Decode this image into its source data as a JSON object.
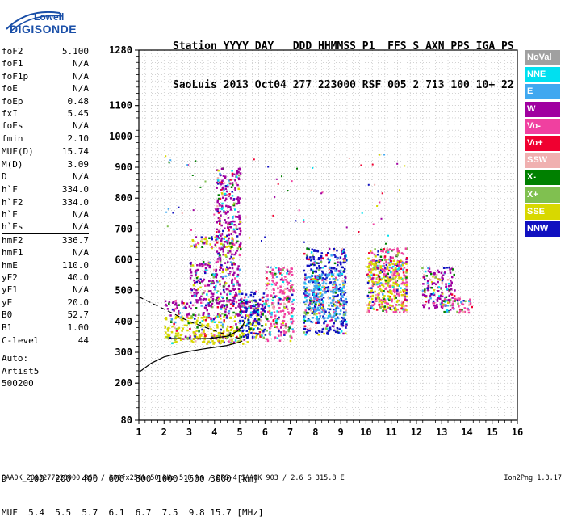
{
  "logo": {
    "top": "Lowell",
    "main": "DIGISONDE"
  },
  "header": {
    "line1": "Station YYYY DAY   DDD HHMMSS P1  FFS S AXN PPS IGA PS",
    "line2": "SaoLuis 2013 Oct04 277 223000 RSF 005 2 713 100 10+ 22"
  },
  "params": [
    {
      "label": "foF2",
      "value": "5.100"
    },
    {
      "label": "foF1",
      "value": "N/A"
    },
    {
      "label": "foF1p",
      "value": "N/A"
    },
    {
      "label": "foE",
      "value": "N/A"
    },
    {
      "label": "foEp",
      "value": "0.48"
    },
    {
      "label": "fxI",
      "value": "5.45"
    },
    {
      "label": "foEs",
      "value": "N/A"
    },
    {
      "label": "fmin",
      "value": "2.10",
      "sep": true
    },
    {
      "label": "MUF(D)",
      "value": "15.74"
    },
    {
      "label": "M(D)",
      "value": "3.09"
    },
    {
      "label": "D",
      "value": "N/A",
      "sep": true
    },
    {
      "label": "h`F",
      "value": "334.0"
    },
    {
      "label": "h`F2",
      "value": "334.0"
    },
    {
      "label": "h`E",
      "value": "N/A"
    },
    {
      "label": "h`Es",
      "value": "N/A",
      "sep": true
    },
    {
      "label": "hmF2",
      "value": "336.7"
    },
    {
      "label": "hmF1",
      "value": "N/A"
    },
    {
      "label": "hmE",
      "value": "110.0"
    },
    {
      "label": "yF2",
      "value": "40.0"
    },
    {
      "label": "yF1",
      "value": "N/A"
    },
    {
      "label": "yE",
      "value": "20.0"
    },
    {
      "label": "B0",
      "value": "52.7"
    },
    {
      "label": "B1",
      "value": "1.00",
      "sep": true
    },
    {
      "label": "C-level",
      "value": "44",
      "sep": true
    }
  ],
  "auto_lines": [
    "Auto:",
    "Artist5",
    "500200"
  ],
  "legend": [
    {
      "label": "NoVal",
      "color": "#a0a0a0"
    },
    {
      "label": "NNE",
      "color": "#00e0f0"
    },
    {
      "label": "E",
      "color": "#40a8f0"
    },
    {
      "label": "W",
      "color": "#a000a0"
    },
    {
      "label": "Vo-",
      "color": "#f040a0"
    },
    {
      "label": "Vo+",
      "color": "#f00030"
    },
    {
      "label": "SSW",
      "color": "#f0b0b0"
    },
    {
      "label": "X-",
      "color": "#008000"
    },
    {
      "label": "X+",
      "color": "#80c050"
    },
    {
      "label": "SSE",
      "color": "#d8d800"
    },
    {
      "label": "NNW",
      "color": "#1010c0"
    }
  ],
  "dmuf": {
    "line1": "D    100  200  400  600  800 1000 1500 3000 [km]",
    "line2": "MUF  5.4  5.5  5.7  6.1  6.7  7.5  9.8 15.7 [MHz]"
  },
  "footer": "SAA0K_2013277223000.RSF / 300fx256h 50 kHz 5.0 km / DPS-4 SAA0K 903 / 2.6 S 315.8 E",
  "version": "Ion2Png 1.3.17",
  "chart_data": {
    "type": "scatter",
    "title": "",
    "xlabel": "",
    "ylabel": "",
    "xlim": [
      1,
      16
    ],
    "ylim": [
      80,
      1280
    ],
    "x_ticks": [
      "1",
      "2",
      "3",
      "4",
      "5",
      "6",
      "7",
      "8",
      "9",
      "10",
      "11",
      "12",
      "13",
      "14",
      "15",
      "16"
    ],
    "y_ticks": [
      "80",
      "200",
      "300",
      "400",
      "500",
      "600",
      "700",
      "800",
      "900",
      "1000",
      "1100",
      "1280"
    ],
    "y_tick_values": [
      80,
      200,
      300,
      400,
      500,
      600,
      700,
      800,
      900,
      1000,
      1100,
      1280
    ],
    "grid": true,
    "echo_clusters": [
      {
        "x": [
          2.0,
          5.3
        ],
        "y": [
          330,
          360
        ],
        "color": "#d8d800"
      },
      {
        "x": [
          2.0,
          5.9
        ],
        "y": [
          350,
          420
        ],
        "color": "#d8d800"
      },
      {
        "x": [
          2.0,
          5.9
        ],
        "y": [
          420,
          470
        ],
        "color": "#a000a0"
      },
      {
        "x": [
          3.0,
          5.0
        ],
        "y": [
          470,
          600
        ],
        "color": "#a000a0"
      },
      {
        "x": [
          3.0,
          4.7
        ],
        "y": [
          640,
          680
        ],
        "color": "#d8d800"
      },
      {
        "x": [
          4.0,
          5.0
        ],
        "y": [
          600,
          900
        ],
        "color": "#a000a0"
      },
      {
        "x": [
          5.0,
          6.0
        ],
        "y": [
          350,
          500
        ],
        "color": "#1010c0"
      },
      {
        "x": [
          6.0,
          7.1
        ],
        "y": [
          340,
          580
        ],
        "color": "#f040a0"
      },
      {
        "x": [
          7.5,
          9.2
        ],
        "y": [
          360,
          640
        ],
        "color": "#1010c0"
      },
      {
        "x": [
          7.5,
          9.2
        ],
        "y": [
          400,
          560
        ],
        "color": "#40a8f0"
      },
      {
        "x": [
          10.0,
          11.6
        ],
        "y": [
          430,
          640
        ],
        "color": "#f040a0"
      },
      {
        "x": [
          10.0,
          11.6
        ],
        "y": [
          440,
          600
        ],
        "color": "#d8d800"
      },
      {
        "x": [
          12.2,
          13.5
        ],
        "y": [
          440,
          580
        ],
        "color": "#a000a0"
      },
      {
        "x": [
          13.0,
          14.2
        ],
        "y": [
          430,
          480
        ],
        "color": "#f040a0"
      }
    ],
    "profile_solid": [
      [
        1.0,
        235
      ],
      [
        1.5,
        265
      ],
      [
        2.0,
        285
      ],
      [
        2.5,
        295
      ],
      [
        3.0,
        303
      ],
      [
        3.5,
        310
      ],
      [
        4.0,
        316
      ],
      [
        4.5,
        322
      ],
      [
        5.0,
        333
      ],
      [
        5.1,
        336.7
      ]
    ],
    "profile_dashed": [
      [
        1.0,
        480
      ],
      [
        1.5,
        460
      ],
      [
        2.0,
        440
      ],
      [
        2.5,
        420
      ],
      [
        3.0,
        400
      ],
      [
        3.5,
        385
      ],
      [
        4.0,
        370
      ],
      [
        4.5,
        355
      ],
      [
        5.0,
        345
      ]
    ],
    "trace_black": [
      [
        2.2,
        345
      ],
      [
        3.0,
        343
      ],
      [
        3.8,
        345
      ],
      [
        4.5,
        352
      ],
      [
        4.9,
        368
      ],
      [
        5.1,
        385
      ],
      [
        5.2,
        400
      ]
    ]
  }
}
